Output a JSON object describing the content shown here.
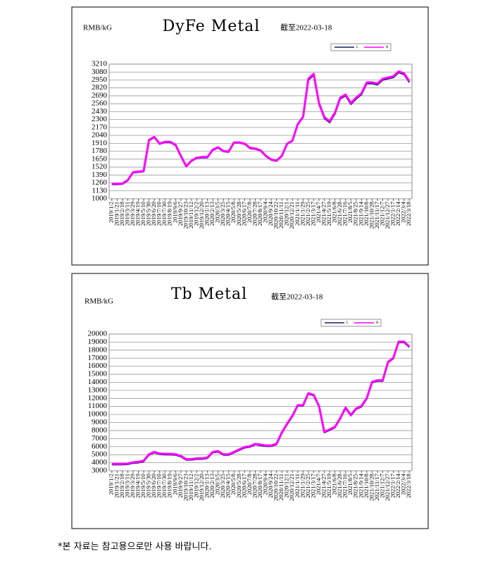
{
  "chart_data": [
    {
      "type": "line",
      "title": "DyFe Metal",
      "unit": "RMB/kG",
      "note": "截至2022-03-18",
      "legend": "upper right",
      "grid": true,
      "categories": [
        "2019/1/2",
        "2019/1/21",
        "2019/2/18",
        "2019/3/11",
        "2019/3/29",
        "2019/4/19",
        "2019/5/10",
        "2019/5/30",
        "2019/6/20",
        "2019/7/10",
        "2019/7/30",
        "2019/8/19",
        "2019/9/6",
        "2019/9/27",
        "2019/10/23",
        "2019/11/12",
        "2019/12/2",
        "2019/12/20",
        "2020/1/13",
        "2020/2/13",
        "2020/3/5",
        "2020/3/25",
        "2020/4/15",
        "2020/5/8",
        "2020/5/28",
        "2020/6/17",
        "2020/7/8",
        "2020/7/28",
        "2020/8/17",
        "2020/9/4",
        "2020/9/24",
        "2020/10/22",
        "2020/11/11",
        "2020/12/1",
        "2020/12/21",
        "2021/1/11",
        "2021/1/29",
        "2021/2/25",
        "2021/3/17",
        "2021/4/7",
        "2021/4/27",
        "2021/5/19",
        "2021/6/8",
        "2021/6/28",
        "2021/7/16",
        "2021/8/5",
        "2021/8/25",
        "2021/9/14",
        "2021/10/8",
        "2021/10/28",
        "2021/11/17",
        "2021/12/7",
        "2021/12/27",
        "2022/1/17",
        "2022/2/14",
        "2022/3/4",
        "2022/3/18"
      ],
      "series": [
        {
          "name": "L",
          "color": "#1a1a6e",
          "values": [
            1235,
            1235,
            1240,
            1295,
            1425,
            1435,
            1445,
            1955,
            2005,
            1895,
            1925,
            1925,
            1875,
            1695,
            1525,
            1615,
            1665,
            1675,
            1675,
            1795,
            1835,
            1775,
            1765,
            1915,
            1915,
            1895,
            1825,
            1815,
            1785,
            1695,
            1635,
            1615,
            1695,
            1895,
            1945,
            2215,
            2335,
            2950,
            3030,
            2550,
            2320,
            2250,
            2390,
            2640,
            2690,
            2550,
            2640,
            2710,
            2890,
            2890,
            2870,
            2950,
            2970,
            2990,
            3070,
            3040,
            2910
          ]
        },
        {
          "name": "H",
          "color": "#ff00ff",
          "values": [
            1245,
            1245,
            1250,
            1305,
            1435,
            1445,
            1455,
            1965,
            2015,
            1905,
            1935,
            1935,
            1885,
            1705,
            1535,
            1625,
            1675,
            1685,
            1685,
            1805,
            1845,
            1785,
            1775,
            1925,
            1925,
            1905,
            1835,
            1825,
            1795,
            1705,
            1645,
            1625,
            1705,
            1905,
            1955,
            2225,
            2345,
            2970,
            3050,
            2570,
            2340,
            2270,
            2410,
            2660,
            2710,
            2570,
            2660,
            2730,
            2910,
            2910,
            2890,
            2970,
            2990,
            3010,
            3090,
            3060,
            2930
          ]
        }
      ],
      "ylim": [
        1000,
        3210
      ],
      "yticks": [
        1000,
        1130,
        1260,
        1390,
        1520,
        1650,
        1780,
        1910,
        2040,
        2170,
        2300,
        2430,
        2560,
        2690,
        2820,
        2950,
        3080,
        3210
      ]
    },
    {
      "type": "line",
      "title": "Tb Metal",
      "unit": "RMB/kG",
      "note": "截至2022-03-18",
      "legend": "upper right",
      "grid": true,
      "categories": [
        "2019/1/2",
        "2019/1/21",
        "2019/2/18",
        "2019/3/11",
        "2019/3/29",
        "2019/4/19",
        "2019/5/10",
        "2019/5/30",
        "2019/6/20",
        "2019/7/10",
        "2019/7/30",
        "2019/8/19",
        "2019/9/6",
        "2019/9/27",
        "2019/10/23",
        "2019/11/12",
        "2019/12/2",
        "2019/12/20",
        "2020/1/13",
        "2020/2/13",
        "2020/3/5",
        "2020/3/25",
        "2020/4/15",
        "2020/5/8",
        "2020/5/28",
        "2020/6/17",
        "2020/7/8",
        "2020/7/28",
        "2020/8/17",
        "2020/9/4",
        "2020/9/24",
        "2020/10/22",
        "2020/11/11",
        "2020/12/1",
        "2020/12/21",
        "2021/1/11",
        "2021/1/29",
        "2021/2/25",
        "2021/3/17",
        "2021/4/7",
        "2021/4/27",
        "2021/5/19",
        "2021/6/8",
        "2021/6/28",
        "2021/7/16",
        "2021/8/5",
        "2021/8/25",
        "2021/9/14",
        "2021/10/8",
        "2021/10/28",
        "2021/11/17",
        "2021/12/7",
        "2021/12/27",
        "2022/1/17",
        "2022/2/14",
        "2022/3/4",
        "2022/3/18"
      ],
      "series": [
        {
          "name": "L",
          "color": "#1a1a6e",
          "values": [
            3750,
            3750,
            3750,
            3800,
            3950,
            4000,
            4150,
            4950,
            5250,
            5050,
            5000,
            5000,
            4950,
            4750,
            4350,
            4350,
            4450,
            4450,
            4550,
            5250,
            5350,
            4950,
            4950,
            5250,
            5550,
            5850,
            5950,
            6250,
            6150,
            6050,
            6050,
            6250,
            7650,
            8750,
            9750,
            11050,
            11050,
            12550,
            12350,
            10950,
            7750,
            8050,
            8350,
            9450,
            10750,
            9850,
            10650,
            10950,
            11950,
            13950,
            14150,
            14150,
            16450,
            16950,
            18950,
            18950,
            18350
          ]
        },
        {
          "name": "H",
          "color": "#ff00ff",
          "values": [
            3850,
            3850,
            3850,
            3900,
            4050,
            4100,
            4250,
            5050,
            5350,
            5150,
            5100,
            5100,
            5050,
            4850,
            4450,
            4450,
            4550,
            4550,
            4650,
            5350,
            5450,
            5050,
            5050,
            5350,
            5650,
            5950,
            6050,
            6350,
            6250,
            6150,
            6150,
            6350,
            7750,
            8850,
            9850,
            11150,
            11150,
            12650,
            12450,
            11050,
            7850,
            8150,
            8450,
            9550,
            10850,
            9950,
            10750,
            11050,
            12050,
            14050,
            14250,
            14250,
            16550,
            17050,
            19050,
            19050,
            18450
          ]
        }
      ],
      "ylim": [
        3000,
        20000
      ],
      "yticks": [
        3000,
        4000,
        5000,
        6000,
        7000,
        8000,
        9000,
        10000,
        11000,
        12000,
        13000,
        14000,
        15000,
        16000,
        17000,
        18000,
        19000,
        20000
      ]
    }
  ],
  "footnote": "*본 자료는 참고용으로만 사용 바랍니다."
}
